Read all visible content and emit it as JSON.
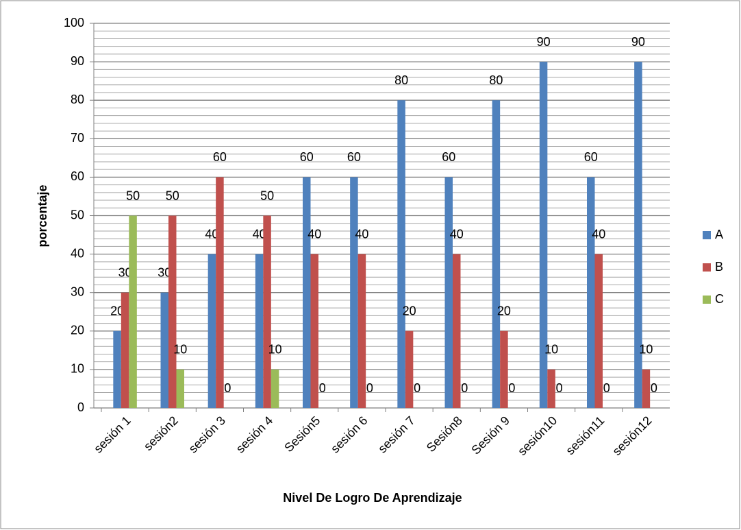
{
  "chart_data": {
    "type": "bar",
    "x_label": "Nivel De Logro De Aprendizaje",
    "y_label": "porcentaje",
    "categories": [
      "sesión 1",
      "sesión2",
      "sesión 3",
      "sesión 4",
      "Sesión5",
      "sesión 6",
      "sesión 7",
      "Sesión8",
      "Sesión 9",
      "sesión10",
      "sesión11",
      "sesión12"
    ],
    "series": [
      {
        "name": "A",
        "color": "#4f81bd",
        "values": [
          20,
          30,
          40,
          40,
          60,
          60,
          80,
          60,
          80,
          90,
          60,
          90
        ]
      },
      {
        "name": "B",
        "color": "#c0504d",
        "values": [
          30,
          50,
          60,
          50,
          40,
          40,
          20,
          40,
          20,
          10,
          40,
          10
        ]
      },
      {
        "name": "C",
        "color": "#9bbb59",
        "values": [
          50,
          10,
          0,
          10,
          0,
          0,
          0,
          0,
          0,
          0,
          0,
          0
        ]
      }
    ],
    "ylim": [
      0,
      100
    ],
    "yticks": [
      0,
      10,
      20,
      30,
      40,
      50,
      60,
      70,
      80,
      90,
      100
    ],
    "minor_yticks": [
      2,
      4,
      6,
      8,
      12,
      14,
      16,
      18,
      22,
      24,
      26,
      28,
      32,
      34,
      36,
      38,
      42,
      44,
      46,
      48,
      52,
      54,
      56,
      58,
      62,
      64,
      66,
      68,
      72,
      74,
      76,
      78,
      82,
      84,
      86,
      88,
      92,
      94,
      96,
      98
    ],
    "grid": true,
    "legend": "right",
    "data_labels": true
  }
}
